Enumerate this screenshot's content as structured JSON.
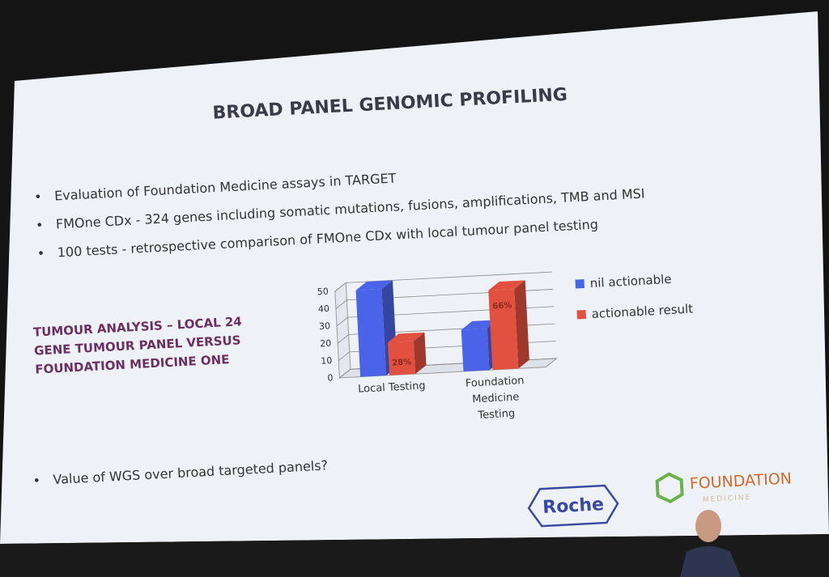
{
  "slide": {
    "title": "BROAD PANEL GENOMIC PROFILING",
    "bullets": [
      "Evaluation of Foundation Medicine assays in TARGET",
      "FMOne CDx - 324 genes including somatic mutations, fusions, amplifications, TMB and MSI",
      "100 tests - retrospective comparison of FMOne CDx with local tumour panel testing"
    ],
    "side_text": "TUMOUR ANALYSIS – LOCAL 24 GENE TUMOUR PANEL VERSUS FOUNDATION MEDICINE ONE",
    "closing_bullet": "Value of WGS over broad targeted panels?",
    "logo_left": "Roche",
    "logo_right": "FOUNDATION",
    "logo_right_sub": "MEDICINE"
  },
  "chart_data": {
    "type": "bar3d",
    "categories": [
      "Local Testing",
      "Foundation Medicine Testing"
    ],
    "series": [
      {
        "name": "nil actionable",
        "color": "#4a63e8",
        "values": [
          50,
          24
        ]
      },
      {
        "name": "actionable result",
        "color": "#e2503f",
        "values": [
          19,
          46
        ]
      }
    ],
    "bar_annotations": [
      "28%",
      "66%"
    ],
    "ylim": [
      0,
      50
    ],
    "yticks": [
      0,
      10,
      20,
      30,
      40,
      50
    ],
    "grid": true,
    "legend": "right"
  }
}
